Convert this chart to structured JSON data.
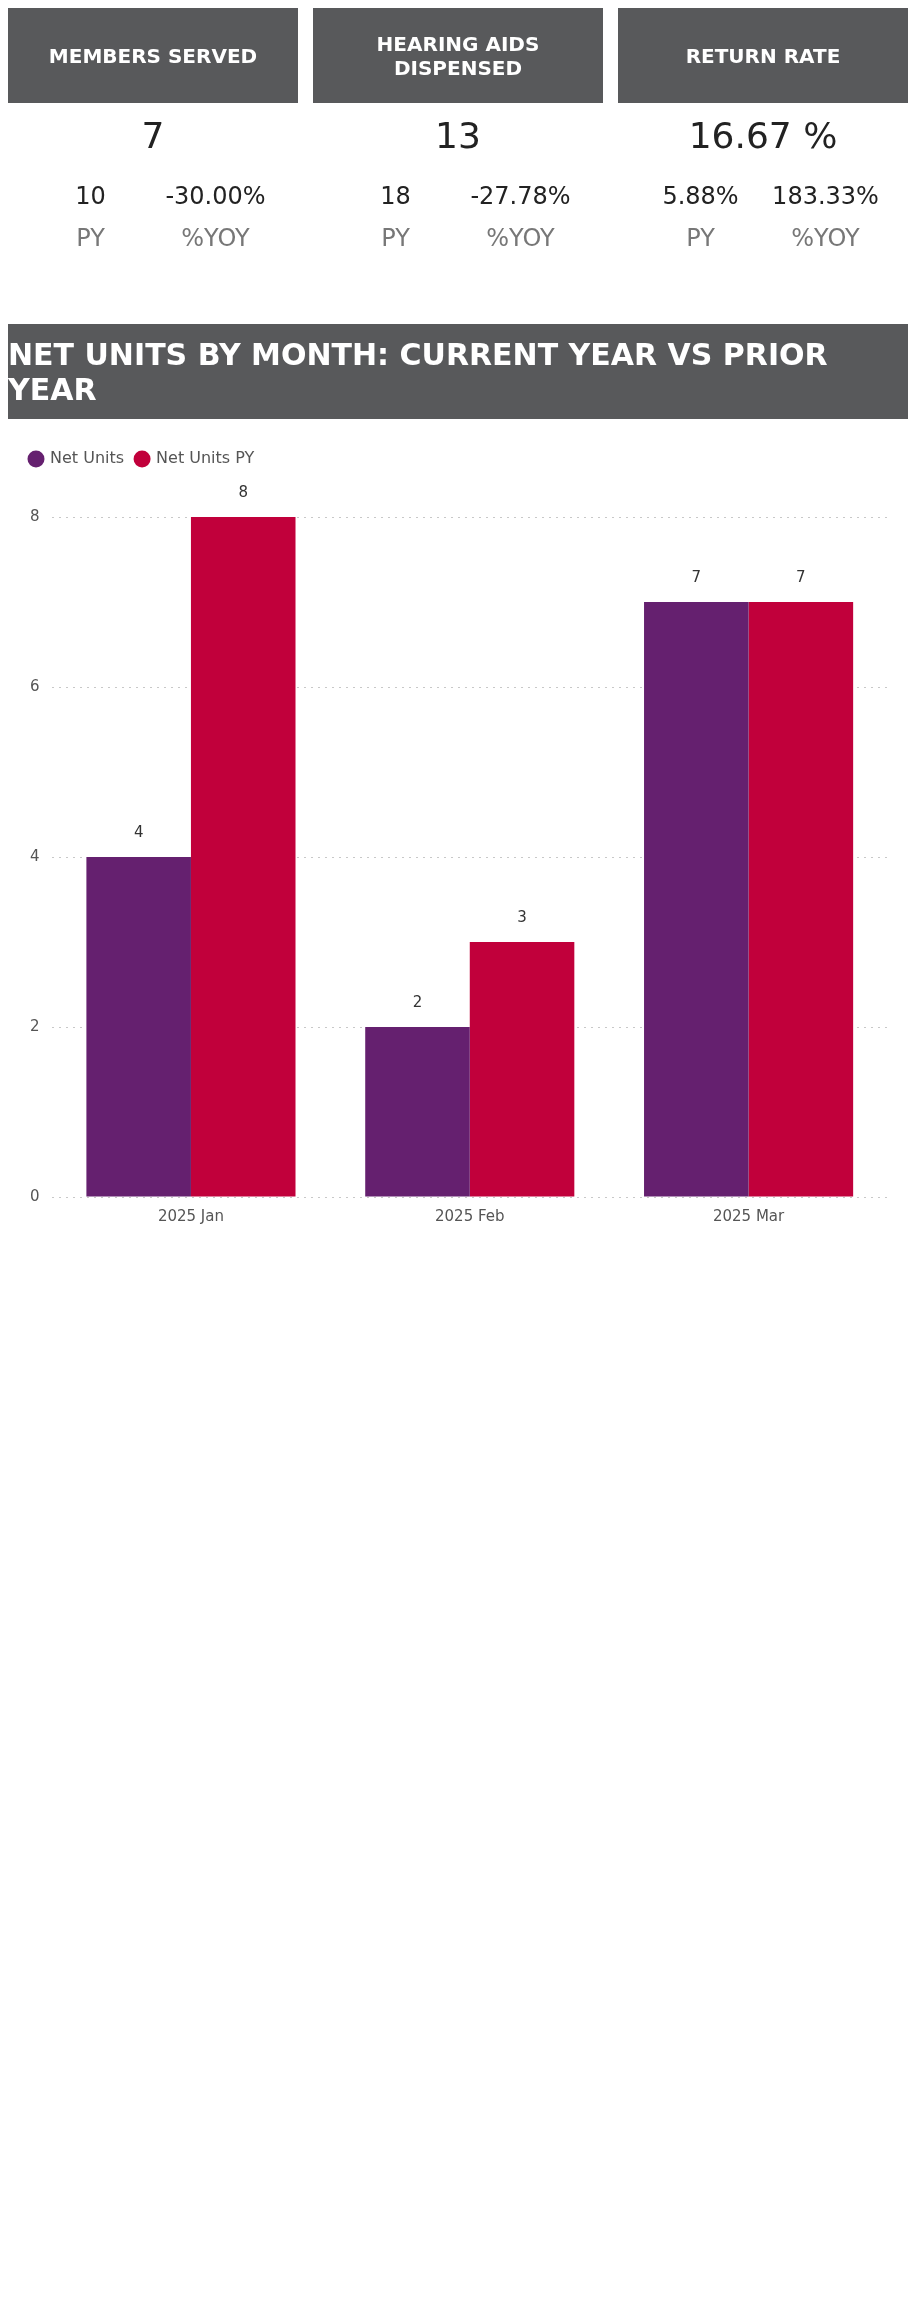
{
  "chart_data": [
    {
      "type": "bar",
      "title": "NET UNITS BY MONTH: CURRENT YEAR VS PRIOR YEAR",
      "categories": [
        "2025 Jan",
        "2025 Feb",
        "2025 Mar"
      ],
      "series": [
        {
          "name": "Net Units",
          "color": "#65206f",
          "values": [
            4,
            2,
            7
          ]
        },
        {
          "name": "Net Units PY",
          "color": "#c1003b",
          "values": [
            8,
            3,
            7
          ]
        }
      ],
      "ylim": [
        0,
        8
      ],
      "yticks": [
        0,
        2,
        4,
        6,
        8
      ],
      "grid": "y",
      "legend": "top left",
      "data_labels": true
    },
    {
      "type": "other",
      "title": "MEMBERS SERVED",
      "annotations": [
        "7",
        "10",
        "-30.00%",
        "PY",
        "%YOY"
      ]
    },
    {
      "type": "other",
      "title": "HEARING AIDS DISPENSED",
      "annotations": [
        "13",
        "18",
        "-27.78%",
        "PY",
        "%YOY"
      ]
    },
    {
      "type": "other",
      "title": "RETURN RATE",
      "annotations": [
        "16.67 %",
        "5.88%",
        "183.33%",
        "PY",
        "%YOY"
      ]
    }
  ]
}
